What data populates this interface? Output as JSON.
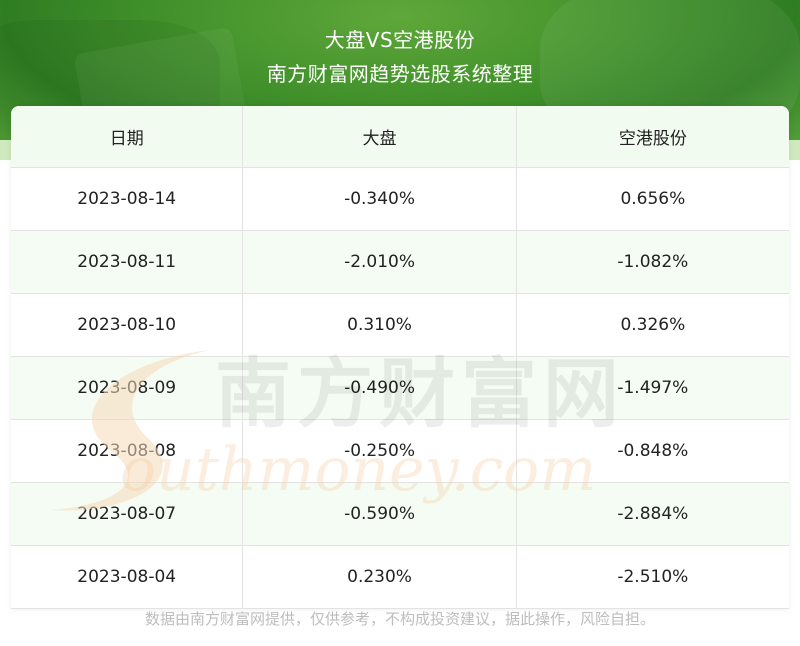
{
  "header": {
    "title_line1": "大盘VS空港股份",
    "title_line2": "南方财富网趋势选股系统整理"
  },
  "table": {
    "columns": [
      "日期",
      "大盘",
      "空港股份"
    ],
    "rows": [
      {
        "date": "2023-08-14",
        "market": "-0.340%",
        "stock": "0.656%"
      },
      {
        "date": "2023-08-11",
        "market": "-2.010%",
        "stock": "-1.082%"
      },
      {
        "date": "2023-08-10",
        "market": "0.310%",
        "stock": "0.326%"
      },
      {
        "date": "2023-08-09",
        "market": "-0.490%",
        "stock": "-1.497%"
      },
      {
        "date": "2023-08-08",
        "market": "-0.250%",
        "stock": "-0.848%"
      },
      {
        "date": "2023-08-07",
        "market": "-0.590%",
        "stock": "-2.884%"
      },
      {
        "date": "2023-08-04",
        "market": "0.230%",
        "stock": "-2.510%"
      }
    ]
  },
  "watermark": {
    "cn": "南方财富网",
    "en": "outhmoney.com"
  },
  "footer": {
    "disclaimer": "数据由南方财富网提供，仅供参考，不构成投资建议，据此操作，风险自担。"
  }
}
